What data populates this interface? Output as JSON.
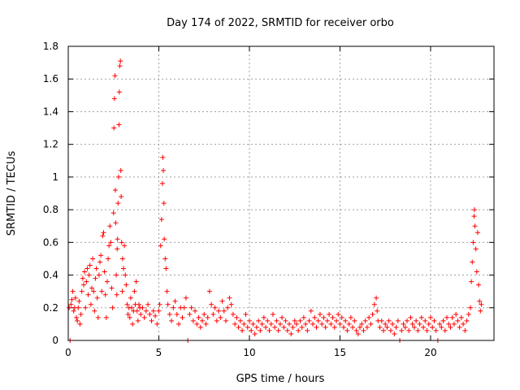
{
  "chart_data": {
    "type": "scatter",
    "title": "Day 174 of 2022, SRMTID for receiver orbo",
    "xlabel": "GPS time / hours",
    "ylabel": "SRMTID / TECUs",
    "xlim": [
      0,
      23.5
    ],
    "ylim": [
      0,
      1.8
    ],
    "xticks": [
      0,
      5,
      10,
      15,
      20
    ],
    "yticks": [
      0,
      0.2,
      0.4,
      0.6,
      0.8,
      1,
      1.2,
      1.4,
      1.6,
      1.8
    ],
    "ytick_labels": [
      "0",
      "0.2",
      "0.4",
      "0.6",
      "0.8",
      "1",
      "1.2",
      "1.4",
      "1.6",
      "1.8"
    ],
    "grid": true,
    "marker": "+",
    "color": "#ff0000",
    "series": [
      {
        "name": "SRMTID",
        "points": [
          [
            0.05,
            0.2
          ],
          [
            0.1,
            0.0
          ],
          [
            0.15,
            0.22
          ],
          [
            0.2,
            0.25
          ],
          [
            0.25,
            0.3
          ],
          [
            0.3,
            0.18
          ],
          [
            0.35,
            0.2
          ],
          [
            0.4,
            0.26
          ],
          [
            0.45,
            0.14
          ],
          [
            0.5,
            0.12
          ],
          [
            0.55,
            0.2
          ],
          [
            0.6,
            0.24
          ],
          [
            0.65,
            0.1
          ],
          [
            0.7,
            0.16
          ],
          [
            0.75,
            0.3
          ],
          [
            0.8,
            0.38
          ],
          [
            0.85,
            0.34
          ],
          [
            0.9,
            0.42
          ],
          [
            0.95,
            0.2
          ],
          [
            1.0,
            0.36
          ],
          [
            1.05,
            0.44
          ],
          [
            1.1,
            0.28
          ],
          [
            1.15,
            0.4
          ],
          [
            1.2,
            0.46
          ],
          [
            1.25,
            0.22
          ],
          [
            1.3,
            0.32
          ],
          [
            1.35,
            0.5
          ],
          [
            1.4,
            0.3
          ],
          [
            1.45,
            0.18
          ],
          [
            1.5,
            0.38
          ],
          [
            1.55,
            0.44
          ],
          [
            1.6,
            0.26
          ],
          [
            1.65,
            0.14
          ],
          [
            1.7,
            0.4
          ],
          [
            1.75,
            0.48
          ],
          [
            1.8,
            0.52
          ],
          [
            1.85,
            0.3
          ],
          [
            1.9,
            0.64
          ],
          [
            1.95,
            0.66
          ],
          [
            2.0,
            0.42
          ],
          [
            2.05,
            0.28
          ],
          [
            2.1,
            0.14
          ],
          [
            2.15,
            0.36
          ],
          [
            2.2,
            0.5
          ],
          [
            2.25,
            0.58
          ],
          [
            2.3,
            0.7
          ],
          [
            2.35,
            0.6
          ],
          [
            2.4,
            0.32
          ],
          [
            2.45,
            0.2
          ],
          [
            2.5,
            0.78
          ],
          [
            2.52,
            1.3
          ],
          [
            2.55,
            1.48
          ],
          [
            2.58,
            1.62
          ],
          [
            2.6,
            0.92
          ],
          [
            2.62,
            0.72
          ],
          [
            2.65,
            0.4
          ],
          [
            2.68,
            0.28
          ],
          [
            2.7,
            0.56
          ],
          [
            2.72,
            0.62
          ],
          [
            2.75,
            0.84
          ],
          [
            2.78,
            1.0
          ],
          [
            2.8,
            1.32
          ],
          [
            2.82,
            1.52
          ],
          [
            2.85,
            1.68
          ],
          [
            2.88,
            1.71
          ],
          [
            2.9,
            1.04
          ],
          [
            2.92,
            0.88
          ],
          [
            2.95,
            0.6
          ],
          [
            2.98,
            0.3
          ],
          [
            3.0,
            0.5
          ],
          [
            3.05,
            0.44
          ],
          [
            3.1,
            0.58
          ],
          [
            3.15,
            0.4
          ],
          [
            3.2,
            0.34
          ],
          [
            3.25,
            0.22
          ],
          [
            3.3,
            0.16
          ],
          [
            3.35,
            0.2
          ],
          [
            3.4,
            0.14
          ],
          [
            3.45,
            0.26
          ],
          [
            3.5,
            0.2
          ],
          [
            3.55,
            0.1
          ],
          [
            3.6,
            0.18
          ],
          [
            3.65,
            0.3
          ],
          [
            3.7,
            0.22
          ],
          [
            3.75,
            0.36
          ],
          [
            3.8,
            0.18
          ],
          [
            3.85,
            0.12
          ],
          [
            3.9,
            0.22
          ],
          [
            3.95,
            0.2
          ],
          [
            4.0,
            0.16
          ],
          [
            4.1,
            0.2
          ],
          [
            4.2,
            0.14
          ],
          [
            4.3,
            0.18
          ],
          [
            4.4,
            0.22
          ],
          [
            4.5,
            0.16
          ],
          [
            4.6,
            0.12
          ],
          [
            4.7,
            0.18
          ],
          [
            4.8,
            0.15
          ],
          [
            4.9,
            0.1
          ],
          [
            5.0,
            0.18
          ],
          [
            5.05,
            0.22
          ],
          [
            5.1,
            0.58
          ],
          [
            5.15,
            0.74
          ],
          [
            5.2,
            0.96
          ],
          [
            5.22,
            1.12
          ],
          [
            5.25,
            1.04
          ],
          [
            5.28,
            0.84
          ],
          [
            5.3,
            0.62
          ],
          [
            5.35,
            0.5
          ],
          [
            5.4,
            0.44
          ],
          [
            5.45,
            0.3
          ],
          [
            5.5,
            0.22
          ],
          [
            5.6,
            0.16
          ],
          [
            5.7,
            0.12
          ],
          [
            5.8,
            0.2
          ],
          [
            5.9,
            0.24
          ],
          [
            6.0,
            0.16
          ],
          [
            6.1,
            0.1
          ],
          [
            6.2,
            0.2
          ],
          [
            6.3,
            0.14
          ],
          [
            6.4,
            0.2
          ],
          [
            6.5,
            0.26
          ],
          [
            6.6,
            0.0
          ],
          [
            6.7,
            0.16
          ],
          [
            6.8,
            0.2
          ],
          [
            6.9,
            0.12
          ],
          [
            7.0,
            0.18
          ],
          [
            7.1,
            0.1
          ],
          [
            7.2,
            0.14
          ],
          [
            7.3,
            0.08
          ],
          [
            7.4,
            0.12
          ],
          [
            7.5,
            0.16
          ],
          [
            7.6,
            0.1
          ],
          [
            7.7,
            0.14
          ],
          [
            7.8,
            0.3
          ],
          [
            7.9,
            0.22
          ],
          [
            8.0,
            0.16
          ],
          [
            8.1,
            0.2
          ],
          [
            8.2,
            0.12
          ],
          [
            8.3,
            0.18
          ],
          [
            8.4,
            0.14
          ],
          [
            8.5,
            0.24
          ],
          [
            8.6,
            0.18
          ],
          [
            8.7,
            0.12
          ],
          [
            8.8,
            0.2
          ],
          [
            8.9,
            0.26
          ],
          [
            9.0,
            0.22
          ],
          [
            9.1,
            0.16
          ],
          [
            9.2,
            0.1
          ],
          [
            9.3,
            0.14
          ],
          [
            9.4,
            0.08
          ],
          [
            9.5,
            0.12
          ],
          [
            9.6,
            0.06
          ],
          [
            9.7,
            0.1
          ],
          [
            9.8,
            0.16
          ],
          [
            9.9,
            0.08
          ],
          [
            10.0,
            0.12
          ],
          [
            10.1,
            0.06
          ],
          [
            10.2,
            0.1
          ],
          [
            10.3,
            0.04
          ],
          [
            10.4,
            0.08
          ],
          [
            10.5,
            0.12
          ],
          [
            10.6,
            0.06
          ],
          [
            10.7,
            0.1
          ],
          [
            10.8,
            0.14
          ],
          [
            10.9,
            0.08
          ],
          [
            11.0,
            0.12
          ],
          [
            11.1,
            0.06
          ],
          [
            11.2,
            0.1
          ],
          [
            11.3,
            0.16
          ],
          [
            11.4,
            0.08
          ],
          [
            11.5,
            0.12
          ],
          [
            11.6,
            0.06
          ],
          [
            11.7,
            0.1
          ],
          [
            11.8,
            0.14
          ],
          [
            11.9,
            0.08
          ],
          [
            12.0,
            0.12
          ],
          [
            12.1,
            0.06
          ],
          [
            12.2,
            0.1
          ],
          [
            12.3,
            0.04
          ],
          [
            12.4,
            0.08
          ],
          [
            12.5,
            0.12
          ],
          [
            12.6,
            0.1
          ],
          [
            12.7,
            0.06
          ],
          [
            12.8,
            0.12
          ],
          [
            12.9,
            0.08
          ],
          [
            13.0,
            0.14
          ],
          [
            13.1,
            0.1
          ],
          [
            13.2,
            0.06
          ],
          [
            13.3,
            0.12
          ],
          [
            13.4,
            0.18
          ],
          [
            13.5,
            0.1
          ],
          [
            13.6,
            0.14
          ],
          [
            13.7,
            0.08
          ],
          [
            13.8,
            0.12
          ],
          [
            13.9,
            0.16
          ],
          [
            14.0,
            0.1
          ],
          [
            14.1,
            0.14
          ],
          [
            14.2,
            0.08
          ],
          [
            14.3,
            0.12
          ],
          [
            14.4,
            0.16
          ],
          [
            14.5,
            0.1
          ],
          [
            14.6,
            0.14
          ],
          [
            14.7,
            0.08
          ],
          [
            14.8,
            0.12
          ],
          [
            14.9,
            0.16
          ],
          [
            15.0,
            0.1
          ],
          [
            15.1,
            0.14
          ],
          [
            15.2,
            0.08
          ],
          [
            15.3,
            0.12
          ],
          [
            15.4,
            0.06
          ],
          [
            15.5,
            0.1
          ],
          [
            15.6,
            0.14
          ],
          [
            15.7,
            0.08
          ],
          [
            15.8,
            0.12
          ],
          [
            15.9,
            0.06
          ],
          [
            16.0,
            0.04
          ],
          [
            16.1,
            0.08
          ],
          [
            16.2,
            0.1
          ],
          [
            16.3,
            0.06
          ],
          [
            16.4,
            0.12
          ],
          [
            16.5,
            0.08
          ],
          [
            16.6,
            0.14
          ],
          [
            16.7,
            0.1
          ],
          [
            16.8,
            0.16
          ],
          [
            16.9,
            0.22
          ],
          [
            17.0,
            0.26
          ],
          [
            17.05,
            0.18
          ],
          [
            17.1,
            0.12
          ],
          [
            17.2,
            0.08
          ],
          [
            17.3,
            0.12
          ],
          [
            17.4,
            0.06
          ],
          [
            17.5,
            0.1
          ],
          [
            17.6,
            0.08
          ],
          [
            17.7,
            0.12
          ],
          [
            17.8,
            0.06
          ],
          [
            17.9,
            0.1
          ],
          [
            18.0,
            0.04
          ],
          [
            18.1,
            0.08
          ],
          [
            18.2,
            0.12
          ],
          [
            18.3,
            0.0
          ],
          [
            18.4,
            0.06
          ],
          [
            18.5,
            0.1
          ],
          [
            18.6,
            0.08
          ],
          [
            18.7,
            0.12
          ],
          [
            18.8,
            0.06
          ],
          [
            18.9,
            0.14
          ],
          [
            19.0,
            0.1
          ],
          [
            19.1,
            0.08
          ],
          [
            19.2,
            0.12
          ],
          [
            19.3,
            0.06
          ],
          [
            19.4,
            0.1
          ],
          [
            19.5,
            0.14
          ],
          [
            19.6,
            0.08
          ],
          [
            19.7,
            0.12
          ],
          [
            19.8,
            0.06
          ],
          [
            19.9,
            0.1
          ],
          [
            20.0,
            0.14
          ],
          [
            20.1,
            0.08
          ],
          [
            20.2,
            0.12
          ],
          [
            20.3,
            0.06
          ],
          [
            20.4,
            0.0
          ],
          [
            20.5,
            0.1
          ],
          [
            20.6,
            0.08
          ],
          [
            20.7,
            0.12
          ],
          [
            20.8,
            0.06
          ],
          [
            20.9,
            0.14
          ],
          [
            21.0,
            0.1
          ],
          [
            21.1,
            0.08
          ],
          [
            21.2,
            0.14
          ],
          [
            21.3,
            0.1
          ],
          [
            21.4,
            0.16
          ],
          [
            21.5,
            0.12
          ],
          [
            21.6,
            0.08
          ],
          [
            21.7,
            0.14
          ],
          [
            21.8,
            0.1
          ],
          [
            21.9,
            0.06
          ],
          [
            22.0,
            0.12
          ],
          [
            22.1,
            0.16
          ],
          [
            22.2,
            0.2
          ],
          [
            22.25,
            0.36
          ],
          [
            22.3,
            0.48
          ],
          [
            22.35,
            0.6
          ],
          [
            22.4,
            0.76
          ],
          [
            22.42,
            0.8
          ],
          [
            22.45,
            0.7
          ],
          [
            22.5,
            0.56
          ],
          [
            22.55,
            0.42
          ],
          [
            22.6,
            0.66
          ],
          [
            22.65,
            0.34
          ],
          [
            22.7,
            0.24
          ],
          [
            22.75,
            0.18
          ],
          [
            22.8,
            0.22
          ]
        ]
      }
    ]
  }
}
